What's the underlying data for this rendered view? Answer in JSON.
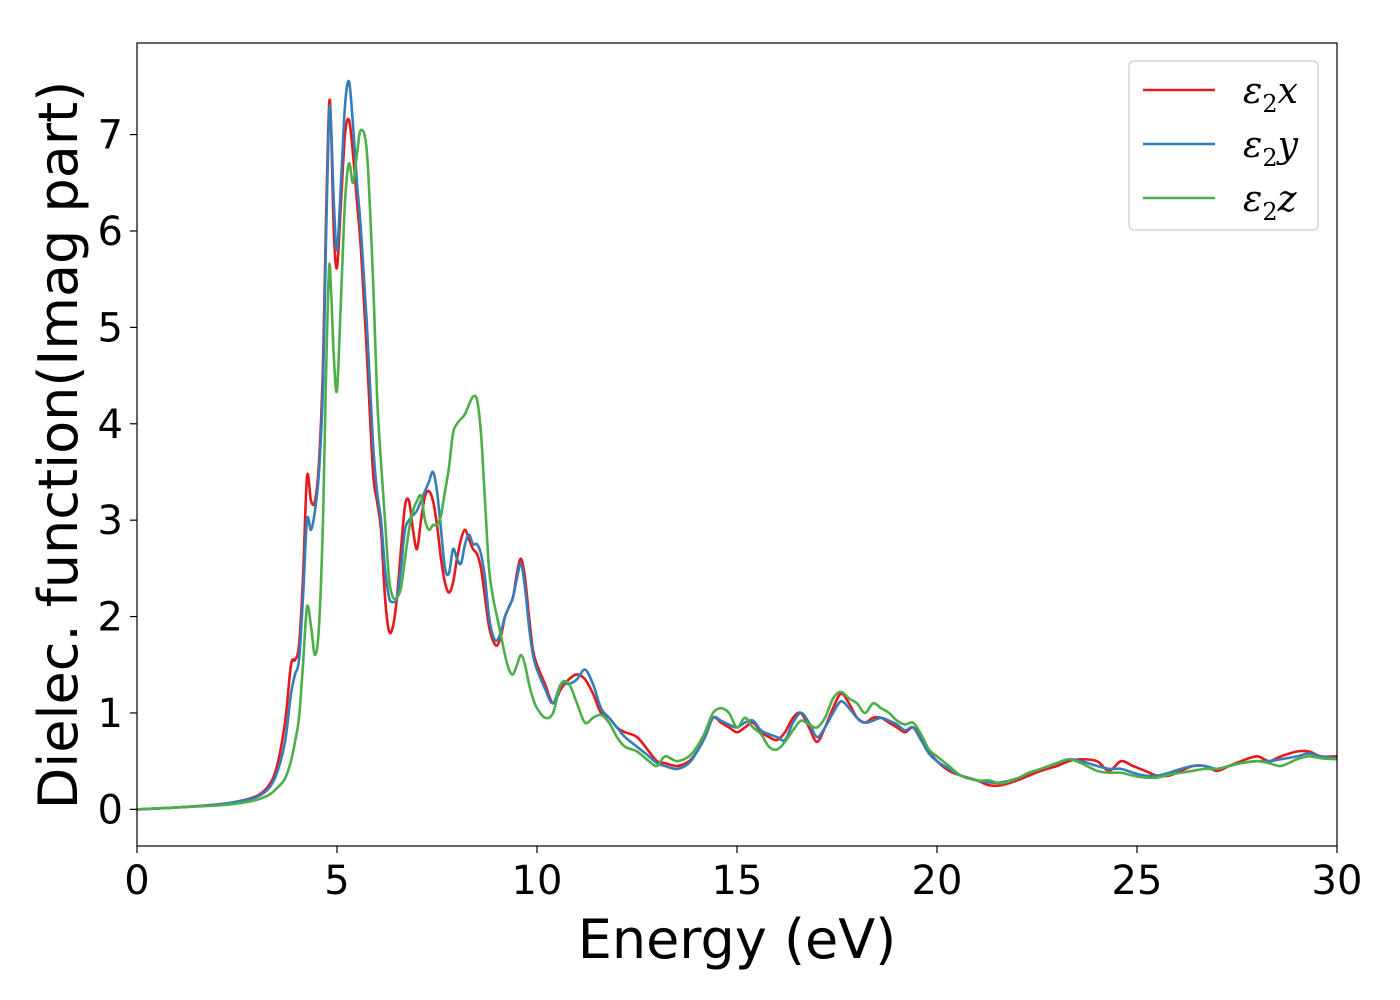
{
  "chart_data": {
    "type": "line",
    "title": "",
    "xlabel": "Energy (eV)",
    "ylabel": "Dielec. function(Imag part)",
    "xlim": [
      0,
      30
    ],
    "ylim": [
      -0.38,
      7.95
    ],
    "xticks": [
      0,
      5,
      10,
      15,
      20,
      25,
      30
    ],
    "yticks": [
      0,
      1,
      2,
      3,
      4,
      5,
      6,
      7
    ],
    "grid": false,
    "legend_position": "top-right",
    "series": [
      {
        "name": "ε2x",
        "legend_main": "ε",
        "legend_sub": "2",
        "legend_tail": "x",
        "color": "#e41a1c",
        "x": [
          0,
          1,
          2,
          2.5,
          3,
          3.3,
          3.5,
          3.7,
          3.85,
          3.95,
          4.05,
          4.15,
          4.25,
          4.35,
          4.45,
          4.55,
          4.65,
          4.72,
          4.8,
          4.85,
          4.92,
          5.0,
          5.1,
          5.2,
          5.3,
          5.4,
          5.5,
          5.6,
          5.75,
          5.9,
          6.0,
          6.1,
          6.2,
          6.3,
          6.4,
          6.5,
          6.6,
          6.7,
          6.8,
          6.9,
          7.0,
          7.1,
          7.2,
          7.3,
          7.4,
          7.5,
          7.6,
          7.7,
          7.8,
          7.9,
          8.0,
          8.1,
          8.2,
          8.3,
          8.4,
          8.5,
          8.6,
          8.7,
          8.8,
          8.9,
          9.0,
          9.1,
          9.2,
          9.3,
          9.4,
          9.5,
          9.6,
          9.7,
          9.8,
          9.9,
          10.0,
          10.2,
          10.4,
          10.6,
          10.8,
          11.0,
          11.2,
          11.4,
          11.6,
          11.8,
          12.0,
          12.2,
          12.5,
          12.8,
          13.0,
          13.2,
          13.5,
          13.8,
          14.0,
          14.2,
          14.4,
          14.6,
          14.8,
          15.0,
          15.2,
          15.4,
          15.6,
          15.8,
          16.0,
          16.2,
          16.4,
          16.6,
          16.8,
          17.0,
          17.2,
          17.4,
          17.6,
          17.8,
          18.0,
          18.2,
          18.4,
          18.6,
          18.8,
          19.0,
          19.2,
          19.4,
          19.6,
          19.8,
          20.0,
          20.3,
          20.6,
          21.0,
          21.3,
          21.6,
          22.0,
          22.3,
          22.6,
          23.0,
          23.3,
          23.6,
          24.0,
          24.3,
          24.6,
          24.9,
          25.2,
          25.5,
          25.8,
          26.1,
          26.4,
          26.7,
          27.0,
          27.3,
          27.6,
          28.0,
          28.3,
          28.6,
          29.0,
          29.3,
          29.6,
          30.0
        ],
        "y": [
          0.0,
          0.02,
          0.05,
          0.08,
          0.14,
          0.25,
          0.45,
          0.9,
          1.5,
          1.55,
          1.7,
          2.4,
          3.45,
          3.2,
          3.2,
          3.6,
          4.6,
          6.0,
          7.28,
          7.1,
          6.0,
          5.62,
          6.3,
          7.0,
          7.15,
          6.8,
          6.3,
          5.8,
          4.7,
          3.5,
          3.2,
          2.9,
          2.2,
          1.85,
          1.9,
          2.2,
          2.7,
          3.15,
          3.2,
          2.9,
          2.7,
          3.0,
          3.25,
          3.3,
          3.2,
          2.95,
          2.6,
          2.35,
          2.25,
          2.35,
          2.6,
          2.8,
          2.9,
          2.8,
          2.7,
          2.65,
          2.5,
          2.2,
          1.9,
          1.75,
          1.7,
          1.8,
          2.0,
          2.1,
          2.2,
          2.45,
          2.6,
          2.4,
          2.0,
          1.65,
          1.5,
          1.3,
          1.1,
          1.25,
          1.35,
          1.4,
          1.35,
          1.2,
          1.0,
          0.95,
          0.85,
          0.8,
          0.75,
          0.6,
          0.5,
          0.48,
          0.45,
          0.5,
          0.6,
          0.75,
          0.95,
          0.9,
          0.85,
          0.8,
          0.85,
          0.9,
          0.8,
          0.75,
          0.72,
          0.8,
          0.95,
          1.0,
          0.85,
          0.7,
          0.85,
          1.05,
          1.2,
          1.1,
          0.95,
          0.9,
          0.95,
          0.95,
          0.9,
          0.85,
          0.8,
          0.85,
          0.75,
          0.6,
          0.5,
          0.4,
          0.35,
          0.3,
          0.25,
          0.25,
          0.3,
          0.35,
          0.4,
          0.45,
          0.5,
          0.52,
          0.5,
          0.4,
          0.5,
          0.45,
          0.4,
          0.35,
          0.35,
          0.4,
          0.45,
          0.45,
          0.4,
          0.45,
          0.5,
          0.55,
          0.5,
          0.55,
          0.6,
          0.6,
          0.55,
          0.55
        ]
      },
      {
        "name": "ε2y",
        "legend_main": "ε",
        "legend_sub": "2",
        "legend_tail": "y",
        "color": "#377eb8",
        "x": [
          0,
          1,
          2,
          2.5,
          3,
          3.3,
          3.5,
          3.7,
          3.85,
          3.95,
          4.05,
          4.15,
          4.25,
          4.35,
          4.45,
          4.55,
          4.65,
          4.72,
          4.8,
          4.85,
          4.92,
          5.0,
          5.1,
          5.2,
          5.3,
          5.4,
          5.5,
          5.6,
          5.75,
          5.9,
          6.0,
          6.1,
          6.2,
          6.3,
          6.4,
          6.5,
          6.6,
          6.7,
          6.8,
          6.9,
          7.0,
          7.1,
          7.2,
          7.3,
          7.4,
          7.5,
          7.6,
          7.7,
          7.8,
          7.9,
          8.0,
          8.1,
          8.2,
          8.3,
          8.4,
          8.5,
          8.6,
          8.7,
          8.8,
          8.9,
          9.0,
          9.1,
          9.2,
          9.3,
          9.4,
          9.5,
          9.6,
          9.7,
          9.8,
          9.9,
          10.0,
          10.2,
          10.4,
          10.6,
          10.8,
          11.0,
          11.2,
          11.4,
          11.6,
          11.8,
          12.0,
          12.2,
          12.5,
          12.8,
          13.0,
          13.2,
          13.5,
          13.8,
          14.0,
          14.2,
          14.4,
          14.6,
          14.8,
          15.0,
          15.2,
          15.4,
          15.6,
          15.8,
          16.0,
          16.2,
          16.4,
          16.6,
          16.8,
          17.0,
          17.2,
          17.4,
          17.6,
          17.8,
          18.0,
          18.2,
          18.4,
          18.6,
          18.8,
          19.0,
          19.2,
          19.4,
          19.6,
          19.8,
          20.0,
          20.3,
          20.6,
          21.0,
          21.3,
          21.6,
          22.0,
          22.3,
          22.6,
          23.0,
          23.3,
          23.6,
          24.0,
          24.3,
          24.6,
          24.9,
          25.2,
          25.5,
          25.8,
          26.1,
          26.4,
          26.7,
          27.0,
          27.3,
          27.6,
          28.0,
          28.3,
          28.6,
          29.0,
          29.3,
          29.6,
          30.0
        ],
        "y": [
          0.0,
          0.02,
          0.05,
          0.08,
          0.13,
          0.22,
          0.38,
          0.7,
          1.2,
          1.4,
          1.55,
          2.2,
          3.0,
          2.9,
          3.1,
          3.5,
          4.4,
          5.8,
          7.2,
          7.1,
          6.3,
          5.8,
          6.5,
          7.3,
          7.55,
          7.1,
          6.5,
          6.0,
          5.0,
          3.8,
          3.3,
          3.0,
          2.5,
          2.2,
          2.15,
          2.2,
          2.5,
          2.9,
          3.0,
          3.05,
          3.1,
          3.2,
          3.3,
          3.4,
          3.5,
          3.3,
          2.9,
          2.5,
          2.45,
          2.7,
          2.6,
          2.55,
          2.75,
          2.85,
          2.75,
          2.75,
          2.65,
          2.4,
          2.0,
          1.8,
          1.75,
          1.85,
          2.0,
          2.1,
          2.2,
          2.4,
          2.55,
          2.3,
          1.9,
          1.6,
          1.45,
          1.25,
          1.1,
          1.3,
          1.3,
          1.35,
          1.45,
          1.3,
          1.05,
          0.95,
          0.85,
          0.75,
          0.65,
          0.55,
          0.48,
          0.45,
          0.42,
          0.48,
          0.6,
          0.75,
          0.95,
          0.92,
          0.88,
          0.85,
          0.9,
          0.92,
          0.82,
          0.78,
          0.75,
          0.72,
          0.9,
          1.0,
          0.9,
          0.75,
          0.85,
          1.0,
          1.12,
          1.05,
          0.95,
          0.9,
          0.92,
          0.95,
          0.92,
          0.88,
          0.82,
          0.85,
          0.72,
          0.58,
          0.5,
          0.42,
          0.35,
          0.3,
          0.28,
          0.28,
          0.32,
          0.38,
          0.42,
          0.48,
          0.52,
          0.5,
          0.45,
          0.42,
          0.42,
          0.38,
          0.35,
          0.35,
          0.38,
          0.42,
          0.45,
          0.45,
          0.42,
          0.45,
          0.48,
          0.5,
          0.5,
          0.52,
          0.55,
          0.58,
          0.55,
          0.53
        ]
      },
      {
        "name": "ε2z",
        "legend_main": "ε",
        "legend_sub": "2",
        "legend_tail": "z",
        "color": "#4daf4a",
        "x": [
          0,
          1,
          2,
          2.5,
          3,
          3.3,
          3.5,
          3.7,
          3.85,
          3.95,
          4.05,
          4.15,
          4.25,
          4.35,
          4.45,
          4.55,
          4.65,
          4.72,
          4.8,
          4.85,
          4.92,
          5.0,
          5.1,
          5.2,
          5.3,
          5.4,
          5.5,
          5.6,
          5.75,
          5.9,
          6.0,
          6.1,
          6.2,
          6.3,
          6.4,
          6.5,
          6.6,
          6.7,
          6.8,
          6.9,
          7.0,
          7.1,
          7.2,
          7.3,
          7.4,
          7.5,
          7.6,
          7.7,
          7.8,
          7.9,
          8.0,
          8.1,
          8.2,
          8.3,
          8.4,
          8.5,
          8.6,
          8.7,
          8.8,
          8.9,
          9.0,
          9.1,
          9.2,
          9.3,
          9.4,
          9.5,
          9.6,
          9.7,
          9.8,
          9.9,
          10.0,
          10.2,
          10.4,
          10.6,
          10.8,
          11.0,
          11.2,
          11.4,
          11.6,
          11.8,
          12.0,
          12.2,
          12.5,
          12.8,
          13.0,
          13.2,
          13.5,
          13.8,
          14.0,
          14.2,
          14.4,
          14.6,
          14.8,
          15.0,
          15.2,
          15.4,
          15.6,
          15.8,
          16.0,
          16.2,
          16.4,
          16.6,
          16.8,
          17.0,
          17.2,
          17.4,
          17.6,
          17.8,
          18.0,
          18.2,
          18.4,
          18.6,
          18.8,
          19.0,
          19.2,
          19.4,
          19.6,
          19.8,
          20.0,
          20.3,
          20.6,
          21.0,
          21.3,
          21.6,
          22.0,
          22.3,
          22.6,
          23.0,
          23.3,
          23.6,
          24.0,
          24.3,
          24.6,
          24.9,
          25.2,
          25.5,
          25.8,
          26.1,
          26.4,
          26.7,
          27.0,
          27.3,
          27.6,
          28.0,
          28.3,
          28.6,
          29.0,
          29.3,
          29.6,
          30.0
        ],
        "y": [
          0.0,
          0.02,
          0.04,
          0.06,
          0.1,
          0.15,
          0.22,
          0.32,
          0.5,
          0.7,
          0.95,
          1.5,
          2.1,
          1.9,
          1.6,
          1.9,
          3.0,
          4.4,
          5.6,
          5.4,
          4.7,
          4.35,
          5.3,
          6.3,
          6.7,
          6.5,
          6.8,
          7.05,
          6.8,
          5.5,
          4.3,
          3.6,
          3.0,
          2.4,
          2.2,
          2.2,
          2.3,
          2.6,
          2.9,
          3.1,
          3.2,
          3.25,
          3.0,
          2.9,
          2.95,
          2.95,
          3.05,
          3.3,
          3.55,
          3.9,
          4.0,
          4.05,
          4.1,
          4.2,
          4.28,
          4.25,
          3.9,
          3.2,
          2.5,
          2.2,
          2.0,
          1.8,
          1.6,
          1.45,
          1.4,
          1.5,
          1.6,
          1.5,
          1.3,
          1.15,
          1.05,
          0.95,
          1.0,
          1.3,
          1.3,
          1.1,
          0.9,
          0.95,
          0.98,
          0.9,
          0.75,
          0.65,
          0.6,
          0.5,
          0.45,
          0.55,
          0.5,
          0.55,
          0.65,
          0.8,
          1.0,
          1.05,
          1.0,
          0.85,
          0.95,
          0.85,
          0.78,
          0.65,
          0.62,
          0.7,
          0.82,
          0.92,
          0.88,
          0.85,
          0.95,
          1.15,
          1.22,
          1.15,
          1.1,
          1.0,
          1.1,
          1.05,
          1.0,
          0.92,
          0.88,
          0.9,
          0.78,
          0.62,
          0.55,
          0.45,
          0.35,
          0.3,
          0.3,
          0.27,
          0.32,
          0.38,
          0.42,
          0.48,
          0.52,
          0.48,
          0.4,
          0.38,
          0.38,
          0.35,
          0.33,
          0.33,
          0.36,
          0.38,
          0.4,
          0.42,
          0.42,
          0.45,
          0.48,
          0.5,
          0.48,
          0.45,
          0.52,
          0.55,
          0.53,
          0.52
        ]
      }
    ]
  }
}
